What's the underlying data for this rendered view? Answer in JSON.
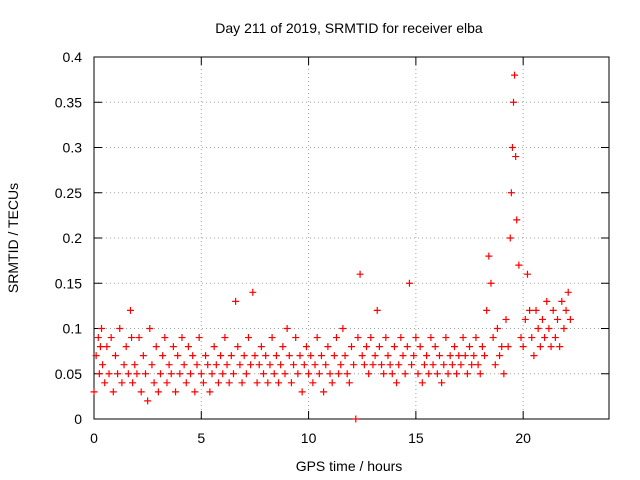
{
  "chart_data": {
    "type": "scatter",
    "title": "Day 211 of 2019, SRMTID for receiver elba",
    "xlabel": "GPS time / hours",
    "ylabel": "SRMTID / TECUs",
    "xlim": [
      0,
      24
    ],
    "ylim": [
      0,
      0.4
    ],
    "xticks": [
      0,
      5,
      10,
      15,
      20
    ],
    "xtick_labels": [
      "0",
      "5",
      "10",
      "15",
      "20"
    ],
    "yticks": [
      0,
      0.05,
      0.1,
      0.15,
      0.2,
      0.25,
      0.3,
      0.35,
      0.4
    ],
    "ytick_labels": [
      "0",
      "0.05",
      "0.1",
      "0.15",
      "0.2",
      "0.25",
      "0.3",
      "0.35",
      "0.4"
    ],
    "grid": true,
    "marker": "+",
    "color": "#ff0000",
    "series": [
      {
        "name": "SRMTID",
        "x": [
          0.0,
          0.1,
          0.2,
          0.25,
          0.3,
          0.35,
          0.4,
          0.5,
          0.6,
          0.7,
          0.8,
          0.9,
          1.0,
          1.1,
          1.2,
          1.3,
          1.4,
          1.5,
          1.6,
          1.7,
          1.75,
          1.8,
          1.9,
          2.0,
          2.1,
          2.2,
          2.3,
          2.4,
          2.5,
          2.6,
          2.7,
          2.8,
          2.9,
          3.0,
          3.1,
          3.2,
          3.3,
          3.4,
          3.5,
          3.6,
          3.7,
          3.8,
          3.9,
          4.0,
          4.1,
          4.2,
          4.3,
          4.4,
          4.5,
          4.6,
          4.7,
          4.8,
          4.9,
          5.0,
          5.1,
          5.2,
          5.3,
          5.4,
          5.5,
          5.6,
          5.7,
          5.8,
          5.9,
          6.0,
          6.1,
          6.2,
          6.3,
          6.4,
          6.5,
          6.6,
          6.7,
          6.8,
          6.9,
          7.0,
          7.1,
          7.2,
          7.3,
          7.4,
          7.5,
          7.6,
          7.7,
          7.8,
          7.9,
          8.0,
          8.1,
          8.2,
          8.3,
          8.4,
          8.5,
          8.6,
          8.7,
          8.8,
          8.9,
          9.0,
          9.1,
          9.2,
          9.3,
          9.4,
          9.5,
          9.6,
          9.7,
          9.8,
          9.9,
          10.0,
          10.1,
          10.2,
          10.3,
          10.4,
          10.5,
          10.6,
          10.7,
          10.8,
          10.9,
          11.0,
          11.1,
          11.2,
          11.3,
          11.4,
          11.5,
          11.6,
          11.7,
          11.8,
          11.9,
          12.0,
          12.1,
          12.2,
          12.3,
          12.4,
          12.5,
          12.6,
          12.7,
          12.8,
          12.9,
          13.0,
          13.1,
          13.2,
          13.3,
          13.4,
          13.5,
          13.6,
          13.7,
          13.8,
          13.9,
          14.0,
          14.1,
          14.2,
          14.3,
          14.4,
          14.5,
          14.6,
          14.7,
          14.8,
          14.9,
          15.0,
          15.1,
          15.2,
          15.3,
          15.4,
          15.5,
          15.6,
          15.7,
          15.8,
          15.9,
          16.0,
          16.1,
          16.2,
          16.3,
          16.4,
          16.5,
          16.6,
          16.7,
          16.8,
          16.9,
          17.0,
          17.1,
          17.2,
          17.3,
          17.4,
          17.5,
          17.6,
          17.7,
          17.8,
          17.9,
          18.0,
          18.1,
          18.2,
          18.3,
          18.4,
          18.5,
          18.6,
          18.7,
          18.8,
          18.9,
          19.0,
          19.1,
          19.2,
          19.3,
          19.4,
          19.45,
          19.5,
          19.55,
          19.6,
          19.65,
          19.7,
          19.8,
          19.9,
          20.0,
          20.1,
          20.2,
          20.3,
          20.4,
          20.5,
          20.6,
          20.7,
          20.8,
          20.9,
          21.0,
          21.1,
          21.2,
          21.3,
          21.4,
          21.5,
          21.6,
          21.7,
          21.8,
          21.9,
          22.0,
          22.1,
          22.2
        ],
        "y": [
          0.03,
          0.07,
          0.09,
          0.05,
          0.08,
          0.1,
          0.06,
          0.04,
          0.08,
          0.05,
          0.09,
          0.03,
          0.07,
          0.05,
          0.1,
          0.04,
          0.06,
          0.08,
          0.05,
          0.12,
          0.09,
          0.04,
          0.06,
          0.05,
          0.09,
          0.03,
          0.07,
          0.05,
          0.02,
          0.1,
          0.06,
          0.04,
          0.08,
          0.03,
          0.05,
          0.07,
          0.09,
          0.04,
          0.06,
          0.05,
          0.08,
          0.03,
          0.07,
          0.05,
          0.09,
          0.06,
          0.04,
          0.08,
          0.05,
          0.07,
          0.03,
          0.06,
          0.09,
          0.05,
          0.04,
          0.07,
          0.06,
          0.03,
          0.05,
          0.08,
          0.06,
          0.04,
          0.07,
          0.05,
          0.09,
          0.06,
          0.04,
          0.07,
          0.05,
          0.13,
          0.08,
          0.06,
          0.04,
          0.07,
          0.05,
          0.09,
          0.06,
          0.14,
          0.07,
          0.04,
          0.06,
          0.08,
          0.05,
          0.07,
          0.04,
          0.06,
          0.09,
          0.05,
          0.07,
          0.04,
          0.06,
          0.08,
          0.05,
          0.1,
          0.07,
          0.04,
          0.06,
          0.09,
          0.05,
          0.07,
          0.03,
          0.06,
          0.08,
          0.05,
          0.07,
          0.04,
          0.06,
          0.09,
          0.05,
          0.07,
          0.03,
          0.06,
          0.08,
          0.05,
          0.04,
          0.07,
          0.09,
          0.05,
          0.06,
          0.1,
          0.07,
          0.05,
          0.04,
          0.08,
          0.06,
          0.0,
          0.09,
          0.16,
          0.07,
          0.06,
          0.08,
          0.05,
          0.09,
          0.06,
          0.07,
          0.12,
          0.08,
          0.06,
          0.05,
          0.09,
          0.07,
          0.06,
          0.05,
          0.08,
          0.04,
          0.06,
          0.09,
          0.07,
          0.05,
          0.08,
          0.15,
          0.06,
          0.07,
          0.09,
          0.05,
          0.08,
          0.04,
          0.06,
          0.07,
          0.05,
          0.09,
          0.06,
          0.08,
          0.05,
          0.07,
          0.04,
          0.06,
          0.09,
          0.05,
          0.07,
          0.06,
          0.08,
          0.05,
          0.07,
          0.06,
          0.09,
          0.07,
          0.05,
          0.08,
          0.06,
          0.07,
          0.09,
          0.06,
          0.05,
          0.08,
          0.07,
          0.12,
          0.18,
          0.15,
          0.09,
          0.06,
          0.1,
          0.07,
          0.08,
          0.05,
          0.11,
          0.08,
          0.2,
          0.25,
          0.3,
          0.35,
          0.38,
          0.29,
          0.22,
          0.17,
          0.09,
          0.08,
          0.11,
          0.16,
          0.12,
          0.09,
          0.07,
          0.12,
          0.1,
          0.08,
          0.11,
          0.09,
          0.13,
          0.1,
          0.08,
          0.12,
          0.09,
          0.11,
          0.08,
          0.13,
          0.1,
          0.12,
          0.14,
          0.11
        ]
      }
    ]
  }
}
